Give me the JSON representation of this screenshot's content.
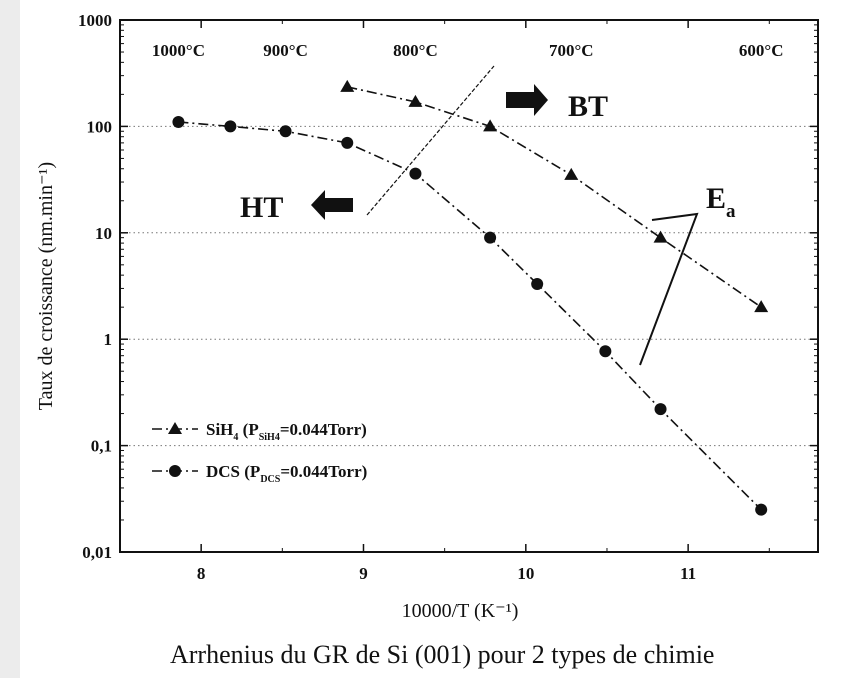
{
  "caption": "Arrhenius du GR de Si (001) pour 2 types de chimie",
  "chart_data": {
    "type": "line",
    "title": "",
    "xlabel": "10000/T (K⁻¹)",
    "ylabel": "Taux de croissance (nm.min⁻¹)",
    "xscale": "linear",
    "yscale": "log",
    "xlim": [
      7.5,
      11.8
    ],
    "ylim": [
      0.01,
      1000
    ],
    "xticks": [
      8,
      9,
      10,
      11
    ],
    "xtick_labels": [
      "8",
      "9",
      "10",
      "11"
    ],
    "yticks": [
      0.01,
      0.1,
      1,
      10,
      100,
      1000
    ],
    "ytick_labels": [
      "0,01",
      "0,1",
      "1",
      "10",
      "100",
      "1000"
    ],
    "grid": true,
    "legend_position": "bottom-left",
    "temperature_labels": [
      {
        "text": "1000°C",
        "x": 7.86
      },
      {
        "text": "900°C",
        "x": 8.52
      },
      {
        "text": "800°C",
        "x": 9.32
      },
      {
        "text": "700°C",
        "x": 10.28
      },
      {
        "text": "600°C",
        "x": 11.45
      }
    ],
    "series": [
      {
        "name": "SiH4 (PSiH4=0.044Torr)",
        "legend_parts": {
          "main": "SiH",
          "main_sub": "4",
          "paren_open": " (P",
          "param_sub": "SiH4",
          "paren_close": "=0.044Torr)"
        },
        "marker": "triangle",
        "color": "#111111",
        "x": [
          8.9,
          9.32,
          9.78,
          10.28,
          10.83,
          11.45
        ],
        "y": [
          235,
          170,
          100,
          35,
          9,
          2
        ]
      },
      {
        "name": "DCS (PDCS=0.044Torr)",
        "legend_parts": {
          "main": "DCS",
          "main_sub": "",
          "paren_open": " (P",
          "param_sub": "DCS",
          "paren_close": "=0.044Torr)"
        },
        "marker": "circle",
        "color": "#111111",
        "x": [
          7.86,
          8.18,
          8.52,
          8.9,
          9.32,
          9.78,
          10.07,
          10.49,
          10.83,
          11.45
        ],
        "y": [
          110,
          100,
          90,
          70,
          36,
          9,
          3.3,
          0.77,
          0.22,
          0.025
        ]
      }
    ],
    "annotations": {
      "bt": "BT",
      "ht": "HT",
      "ea": "E",
      "ea_sub": "a"
    }
  }
}
